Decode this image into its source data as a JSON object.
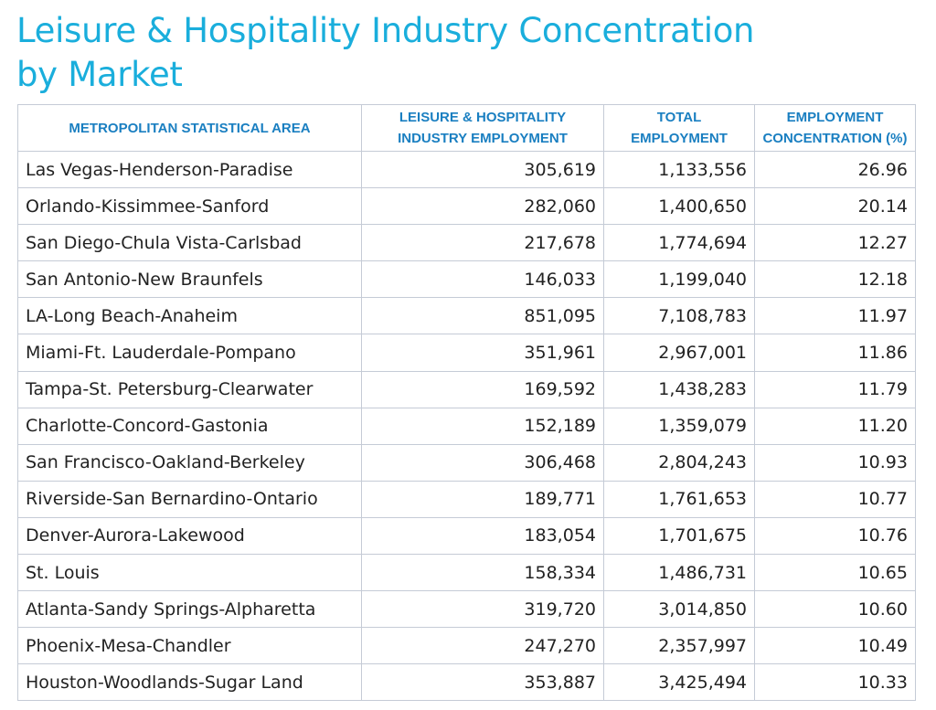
{
  "title": {
    "line1": "Leisure & Hospitality Industry Concentration",
    "line2": "by Market"
  },
  "table": {
    "headers": [
      "Metropolitan Statistical Area",
      "Leisure & Hospitality Industry Employment",
      "Total Employment",
      "Employment Concentration (%)"
    ],
    "rows": [
      [
        "Las Vegas-Henderson-Paradise",
        "305,619",
        "1,133,556",
        "26.96"
      ],
      [
        "Orlando-Kissimmee-Sanford",
        "282,060",
        "1,400,650",
        "20.14"
      ],
      [
        "San Diego-Chula Vista-Carlsbad",
        "217,678",
        "1,774,694",
        "12.27"
      ],
      [
        "San Antonio-New Braunfels",
        "146,033",
        "1,199,040",
        "12.18"
      ],
      [
        "LA-Long Beach-Anaheim",
        "851,095",
        "7,108,783",
        "11.97"
      ],
      [
        "Miami-Ft. Lauderdale-Pompano",
        "351,961",
        "2,967,001",
        "11.86"
      ],
      [
        "Tampa-St. Petersburg-Clearwater",
        "169,592",
        "1,438,283",
        "11.79"
      ],
      [
        "Charlotte-Concord-Gastonia",
        "152,189",
        "1,359,079",
        "11.20"
      ],
      [
        "San Francisco-Oakland-Berkeley",
        "306,468",
        "2,804,243",
        "10.93"
      ],
      [
        "Riverside-San Bernardino-Ontario",
        "189,771",
        "1,761,653",
        "10.77"
      ],
      [
        "Denver-Aurora-Lakewood",
        "183,054",
        "1,701,675",
        "10.76"
      ],
      [
        "St. Louis",
        "158,334",
        "1,486,731",
        "10.65"
      ],
      [
        "Atlanta-Sandy Springs-Alpharetta",
        "319,720",
        "3,014,850",
        "10.60"
      ],
      [
        "Phoenix-Mesa-Chandler",
        "247,270",
        "2,357,997",
        "10.49"
      ],
      [
        "Houston-Woodlands-Sugar Land",
        "353,887",
        "3,425,494",
        "10.33"
      ]
    ]
  },
  "colors": {
    "title": "#1aaedc",
    "header_text": "#1a7fc1",
    "grid": "#c5cbd6",
    "body_text": "#222222"
  }
}
